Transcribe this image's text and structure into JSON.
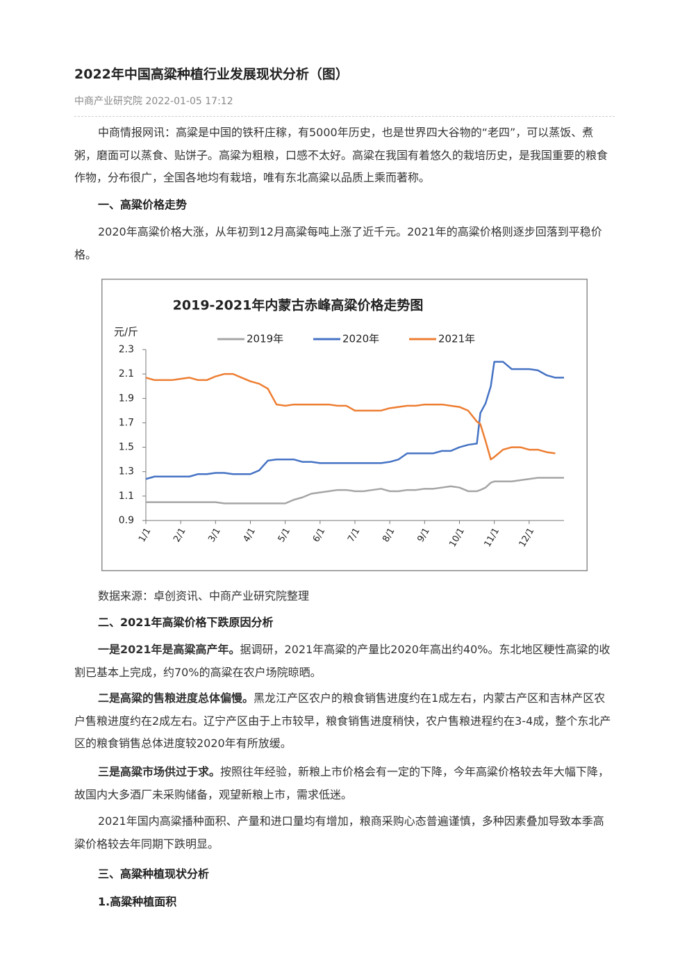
{
  "header": {
    "title": "2022年中国高粱种植行业发展现状分析（图）",
    "source": "中商产业研究院",
    "date": "2022-01-05 17:12"
  },
  "intro": "中商情报网讯：高粱是中国的铁秆庄稼，有5000年历史，也是世界四大谷物的“老四”，可以蒸饭、煮粥，磨面可以蒸食、贴饼子。高粱为粗粮，口感不太好。高粱在我国有着悠久的栽培历史，是我国重要的粮食作物，分布很广，全国各地均有栽培，唯有东北高粱以品质上乘而著称。",
  "section1": {
    "heading": "一、高粱价格走势",
    "paragraph": "2020年高粱价格大涨，从年初到12月高粱每吨上涨了近千元。2021年的高粱价格则逐步回落到平稳价格。"
  },
  "chart_data": {
    "type": "line",
    "title": "2019-2021年内蒙古赤峰高粱价格走势图",
    "y_label": "元/斤",
    "legend": "top",
    "grid": false,
    "x": [
      1,
      1.25,
      1.5,
      1.75,
      2,
      2.25,
      2.5,
      2.75,
      3,
      3.25,
      3.5,
      3.75,
      4,
      4.25,
      4.5,
      4.75,
      5,
      5.25,
      5.5,
      5.75,
      6,
      6.25,
      6.5,
      6.75,
      7,
      7.25,
      7.5,
      7.75,
      8,
      8.25,
      8.5,
      8.75,
      9,
      9.25,
      9.5,
      9.75,
      10,
      10.25,
      10.5,
      10.6,
      10.75,
      10.9,
      11,
      11.25,
      11.5,
      11.75,
      12,
      12.25,
      12.5,
      12.75,
      13
    ],
    "xlim": [
      1,
      13
    ],
    "xticks": [
      {
        "value": 1,
        "label": "1/1"
      },
      {
        "value": 2,
        "label": "2/1"
      },
      {
        "value": 3,
        "label": "3/1"
      },
      {
        "value": 4,
        "label": "4/1"
      },
      {
        "value": 5,
        "label": "5/1"
      },
      {
        "value": 6,
        "label": "6/1"
      },
      {
        "value": 7,
        "label": "7/1"
      },
      {
        "value": 8,
        "label": "8/1"
      },
      {
        "value": 9,
        "label": "9/1"
      },
      {
        "value": 10,
        "label": "10/1"
      },
      {
        "value": 11,
        "label": "11/1"
      },
      {
        "value": 12,
        "label": "12/1"
      }
    ],
    "ylim": [
      0.9,
      2.3
    ],
    "yticks": [
      0.9,
      1.1,
      1.3,
      1.5,
      1.7,
      1.9,
      2.1,
      2.3
    ],
    "series": [
      {
        "name": "2019年",
        "color": "#a5a5a5",
        "values": [
          1.05,
          1.05,
          1.05,
          1.05,
          1.05,
          1.05,
          1.05,
          1.05,
          1.05,
          1.04,
          1.04,
          1.04,
          1.04,
          1.04,
          1.04,
          1.04,
          1.04,
          1.07,
          1.09,
          1.12,
          1.13,
          1.14,
          1.15,
          1.15,
          1.14,
          1.14,
          1.15,
          1.16,
          1.14,
          1.14,
          1.15,
          1.15,
          1.16,
          1.16,
          1.17,
          1.18,
          1.17,
          1.14,
          1.14,
          1.15,
          1.17,
          1.21,
          1.22,
          1.22,
          1.22,
          1.23,
          1.24,
          1.25,
          1.25,
          1.25,
          1.25
        ]
      },
      {
        "name": "2020年",
        "color": "#4472c4",
        "values": [
          1.24,
          1.26,
          1.26,
          1.26,
          1.26,
          1.26,
          1.28,
          1.28,
          1.29,
          1.29,
          1.28,
          1.28,
          1.28,
          1.31,
          1.39,
          1.4,
          1.4,
          1.4,
          1.38,
          1.38,
          1.37,
          1.37,
          1.37,
          1.37,
          1.37,
          1.37,
          1.37,
          1.37,
          1.38,
          1.4,
          1.45,
          1.45,
          1.45,
          1.45,
          1.47,
          1.47,
          1.5,
          1.52,
          1.53,
          1.78,
          1.86,
          2.0,
          2.2,
          2.2,
          2.14,
          2.14,
          2.14,
          2.13,
          2.09,
          2.07,
          2.07
        ]
      },
      {
        "name": "2021年",
        "color": "#ed7d31",
        "values": [
          2.07,
          2.05,
          2.05,
          2.05,
          2.06,
          2.07,
          2.05,
          2.05,
          2.08,
          2.1,
          2.1,
          2.07,
          2.04,
          2.02,
          1.98,
          1.85,
          1.84,
          1.85,
          1.85,
          1.85,
          1.85,
          1.85,
          1.84,
          1.84,
          1.8,
          1.8,
          1.8,
          1.8,
          1.82,
          1.83,
          1.84,
          1.84,
          1.85,
          1.85,
          1.85,
          1.84,
          1.83,
          1.8,
          1.71,
          1.69,
          1.55,
          1.4,
          1.42,
          1.48,
          1.5,
          1.5,
          1.48,
          1.48,
          1.46,
          1.45,
          null
        ]
      }
    ]
  },
  "caption": "数据来源：卓创资讯、中商产业研究院整理",
  "section2": {
    "heading": "二、2021年高粱价格下跌原因分析",
    "points": [
      {
        "lead": "一是2021年是高粱高产年。",
        "text": "据调研，2021年高粱的产量比2020年高出约40%。东北地区粳性高粱的收割已基本上完成，约70%的高粱在农户场院晾晒。"
      },
      {
        "lead": "二是高粱的售粮进度总体偏慢。",
        "text": "黑龙江产区农户的粮食销售进度约在1成左右，内蒙古产区和吉林产区农户售粮进度约在2成左右。辽宁产区由于上市较早，粮食销售进度稍快，农户售粮进程约在3-4成，整个东北产区的粮食销售总体进度较2020年有所放缓。"
      },
      {
        "lead": "三是高粱市场供过于求。",
        "text": "按照往年经验，新粮上市价格会有一定的下降，今年高粱价格较去年大幅下降，故国内大多酒厂未采购储备，观望新粮上市，需求低迷。"
      }
    ],
    "summary": "2021年国内高粱播种面积、产量和进口量均有增加，粮商采购心态普遍谨慎，多种因素叠加导致本季高粱价格较去年同期下跌明显。"
  },
  "section3": {
    "heading": "三、高粱种植现状分析",
    "subheading": "1.高粱种植面积"
  }
}
